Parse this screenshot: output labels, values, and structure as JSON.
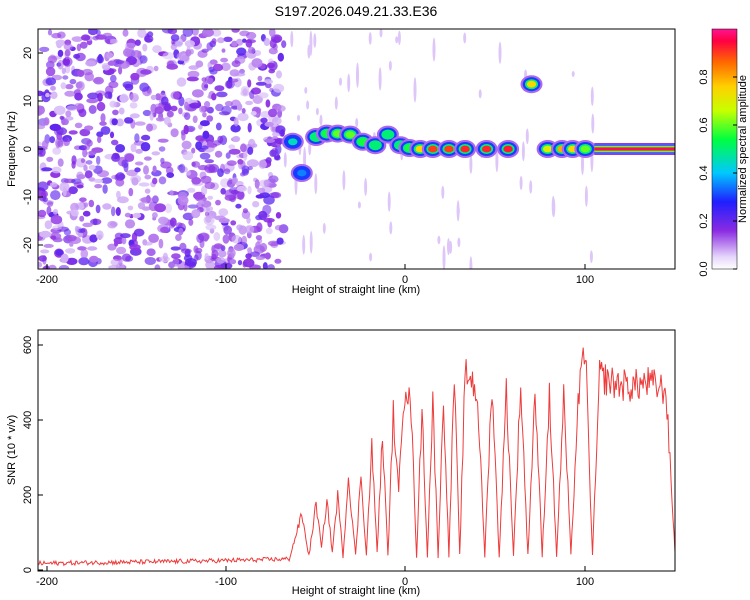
{
  "title": "S197.2026.049.21.33.E36",
  "chart_data": [
    {
      "type": "heatmap",
      "name": "spectrogram",
      "xlabel": "Height of straight line (km)",
      "ylabel": "Frequency (Hz)",
      "xlim": [
        -205,
        150
      ],
      "ylim": [
        -25,
        25
      ],
      "xticks": [
        "-200",
        "-100",
        "0",
        "100"
      ],
      "yticks": [
        "-20",
        "-10",
        "0",
        "10",
        "20"
      ],
      "noise_region": [
        -205,
        -68
      ],
      "ridge": [
        {
          "x": -63,
          "y": 1.5,
          "a": 0.45
        },
        {
          "x": -58,
          "y": -5,
          "a": 0.35
        },
        {
          "x": -50,
          "y": 2.5,
          "a": 0.5
        },
        {
          "x": -44,
          "y": 3.2,
          "a": 0.55
        },
        {
          "x": -38,
          "y": 3.2,
          "a": 0.6
        },
        {
          "x": -31,
          "y": 3.0,
          "a": 0.6
        },
        {
          "x": -24,
          "y": 1.5,
          "a": 0.55
        },
        {
          "x": -17,
          "y": 0.8,
          "a": 0.5
        },
        {
          "x": -10,
          "y": 3.0,
          "a": 0.5
        },
        {
          "x": -3,
          "y": 0.8,
          "a": 0.5
        },
        {
          "x": 2,
          "y": 0.2,
          "a": 0.55
        },
        {
          "x": 8,
          "y": 0.0,
          "a": 0.75
        },
        {
          "x": 15,
          "y": 0.0,
          "a": 0.9
        },
        {
          "x": 24,
          "y": 0.0,
          "a": 0.9
        },
        {
          "x": 33,
          "y": 0.0,
          "a": 0.92
        },
        {
          "x": 45,
          "y": 0.0,
          "a": 0.92
        },
        {
          "x": 57,
          "y": 0.0,
          "a": 0.93
        },
        {
          "x": 70,
          "y": 13.5,
          "a": 0.75
        },
        {
          "x": 79,
          "y": 0.0,
          "a": 0.7
        },
        {
          "x": 87,
          "y": 0.0,
          "a": 0.8
        },
        {
          "x": 93,
          "y": 0.0,
          "a": 0.75
        },
        {
          "x": 100,
          "y": 0.0,
          "a": 0.6
        },
        {
          "x": 120,
          "y": 0.0,
          "a": 0.97
        },
        {
          "x": 140,
          "y": 0.0,
          "a": 0.97
        }
      ],
      "colorbar": {
        "label": "Normalized spectral amplitude",
        "ticks": [
          "0.0",
          "0.2",
          "0.4",
          "0.6",
          "0.8"
        ],
        "range": [
          0,
          1
        ]
      }
    },
    {
      "type": "line",
      "name": "snr",
      "xlabel": "Height of straight line (km)",
      "ylabel": "SNR (10 * v/v)",
      "xlim": [
        -205,
        150
      ],
      "ylim": [
        0,
        640
      ],
      "xticks": [
        "-200",
        "-100",
        "0",
        "100"
      ],
      "yticks": [
        "0",
        "200",
        "400",
        "600"
      ],
      "color": "#ee3b3b",
      "series": [
        {
          "name": "SNR",
          "x": [
            -205,
            -180,
            -150,
            -120,
            -100,
            -80,
            -65,
            -58,
            -54,
            -50,
            -47,
            -44,
            -41,
            -38,
            -35,
            -32,
            -28,
            -25,
            -22,
            -19,
            -16,
            -13,
            -10,
            -7,
            -4,
            -2,
            0,
            3,
            6,
            9,
            12,
            15,
            18,
            21,
            24,
            27,
            30,
            33,
            36,
            40,
            44,
            48,
            52,
            56,
            60,
            64,
            68,
            72,
            76,
            80,
            84,
            88,
            92,
            96,
            100,
            104,
            108,
            115,
            125,
            135,
            145,
            150
          ],
          "values": [
            20,
            22,
            24,
            26,
            28,
            30,
            32,
            150,
            40,
            180,
            60,
            190,
            50,
            200,
            40,
            250,
            40,
            260,
            40,
            330,
            50,
            360,
            40,
            420,
            200,
            420,
            500,
            420,
            40,
            430,
            40,
            450,
            40,
            460,
            40,
            520,
            40,
            520,
            520,
            460,
            40,
            500,
            40,
            480,
            40,
            500,
            40,
            480,
            40,
            470,
            40,
            460,
            40,
            450,
            600,
            40,
            520,
            500,
            490,
            500,
            480,
            50
          ]
        }
      ]
    }
  ]
}
